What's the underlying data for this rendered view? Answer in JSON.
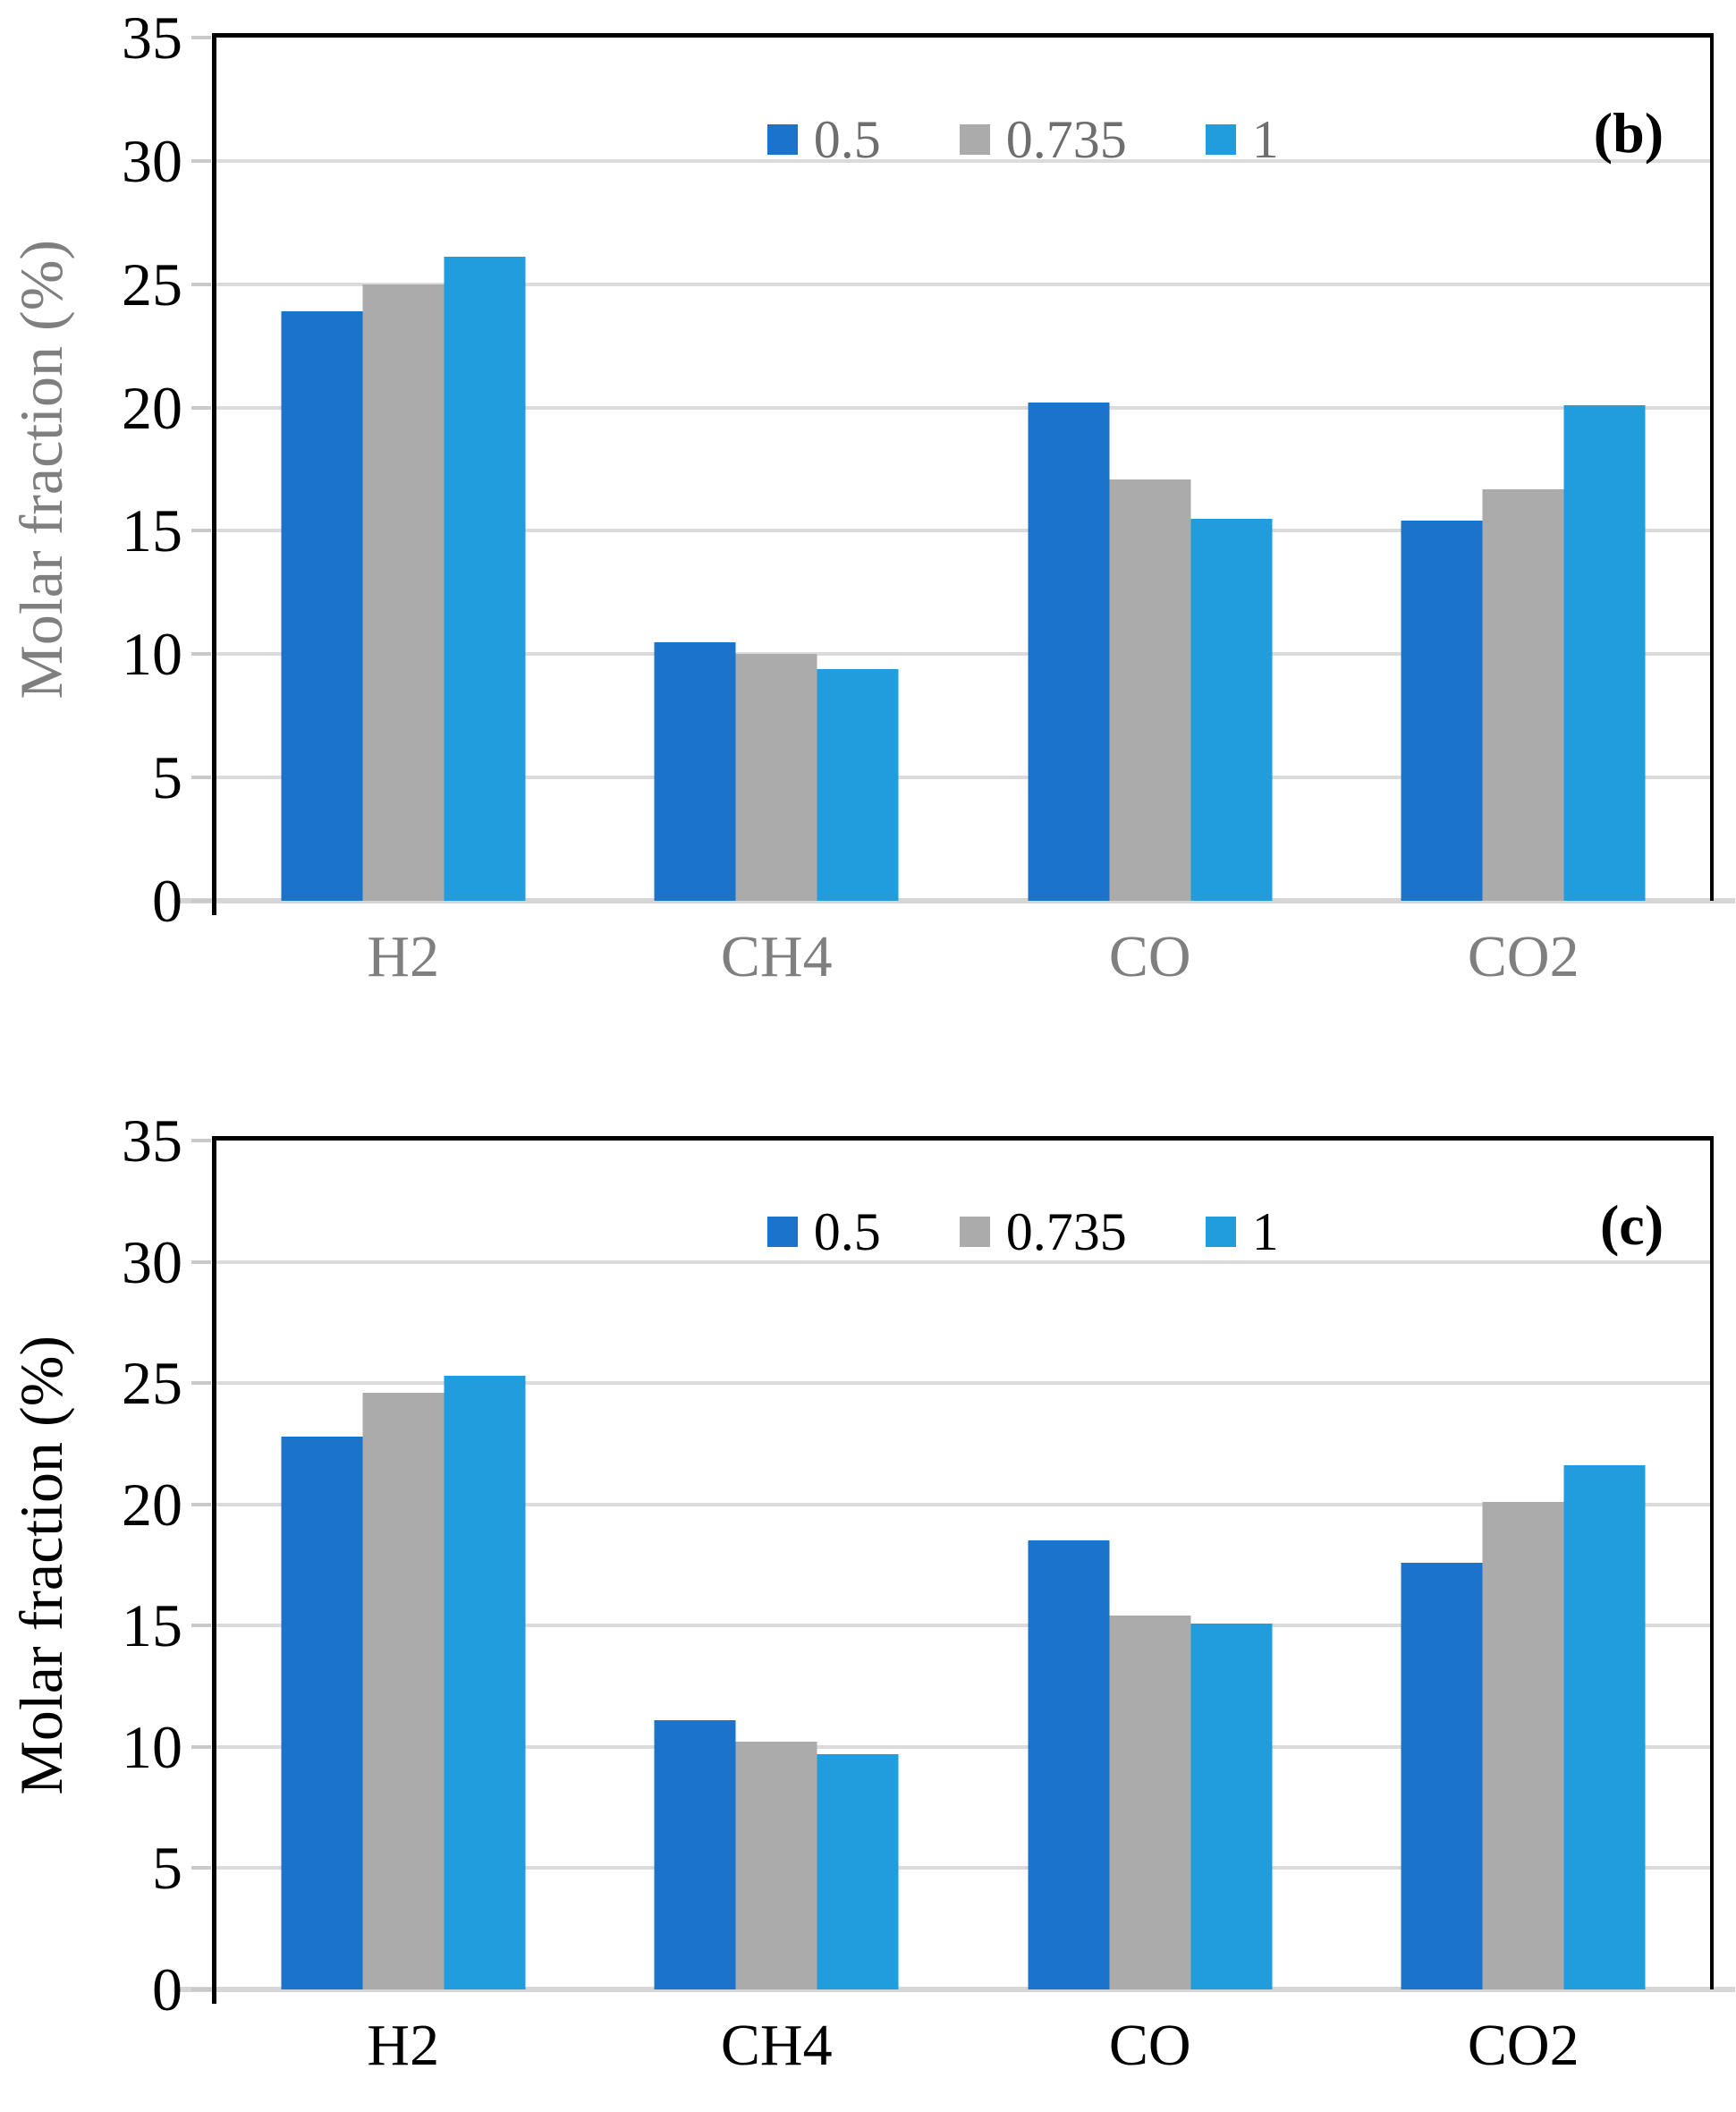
{
  "chart_data": [
    {
      "type": "bar",
      "panel_label": "(b)",
      "ylabel": "Molar fraction (%)",
      "ylim": [
        0,
        35
      ],
      "ytick_step": 5,
      "yticks": [
        0,
        5,
        10,
        15,
        20,
        25,
        30,
        35
      ],
      "categories": [
        "H2",
        "CH4",
        "CO",
        "CO2"
      ],
      "series": [
        {
          "name": "0.5",
          "color": "#1B74C9",
          "values": [
            23.9,
            10.5,
            20.2,
            15.4
          ]
        },
        {
          "name": "0.735",
          "color": "#ABABAB",
          "values": [
            25.0,
            10.0,
            17.1,
            16.7
          ]
        },
        {
          "name": "1",
          "color": "#219CDC",
          "values": [
            26.1,
            9.4,
            15.5,
            20.1
          ]
        }
      ],
      "legend": {
        "labels": [
          "0.5",
          "0.735",
          "1"
        ],
        "position": "top-center"
      },
      "grid": true,
      "gridline_color": "#DBDBDB",
      "text_colors": {
        "axis_title": "#7F7F7F",
        "x_labels": "#7F7F7F",
        "y_labels": "#000000",
        "legend": "#6E6E6E",
        "panel_label": "#000000"
      }
    },
    {
      "type": "bar",
      "panel_label": "(c)",
      "ylabel": "Molar fraction (%)",
      "ylim": [
        0,
        35
      ],
      "ytick_step": 5,
      "yticks": [
        0,
        5,
        10,
        15,
        20,
        25,
        30,
        35
      ],
      "categories": [
        "H2",
        "CH4",
        "CO",
        "CO2"
      ],
      "series": [
        {
          "name": "0.5",
          "color": "#1B74C9",
          "values": [
            22.8,
            11.1,
            18.5,
            17.6
          ]
        },
        {
          "name": "0.735",
          "color": "#ABABAB",
          "values": [
            24.6,
            10.2,
            15.4,
            20.1
          ]
        },
        {
          "name": "1",
          "color": "#219CDC",
          "values": [
            25.3,
            9.7,
            15.1,
            21.6
          ]
        }
      ],
      "legend": {
        "labels": [
          "0.5",
          "0.735",
          "1"
        ],
        "position": "top-center"
      },
      "grid": true,
      "gridline_color": "#DBDBDB",
      "text_colors": {
        "axis_title": "#000000",
        "x_labels": "#000000",
        "y_labels": "#000000",
        "legend": "#000000",
        "panel_label": "#000000"
      }
    }
  ]
}
